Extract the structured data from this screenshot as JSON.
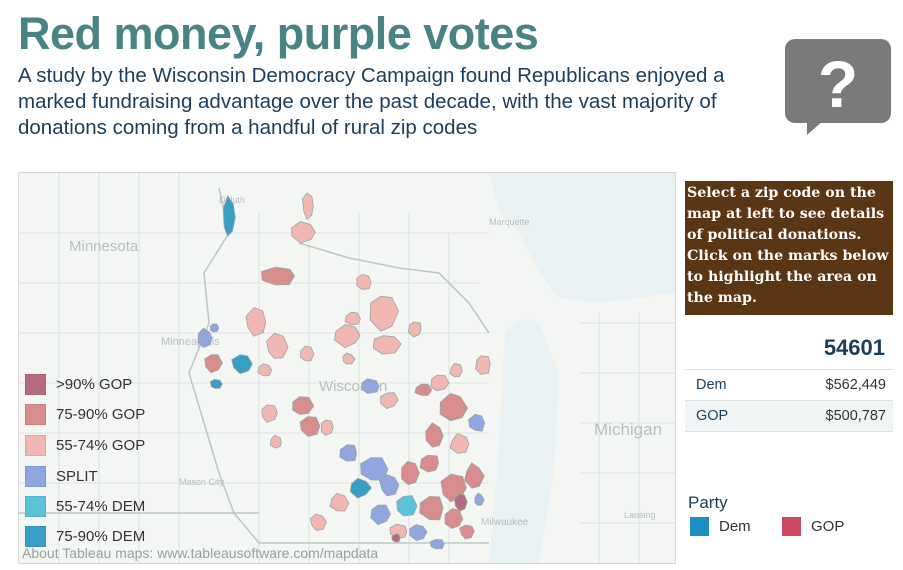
{
  "header": {
    "title": "Red money, purple votes",
    "subtitle": "A study by the Wisconsin Democracy Campaign found Republicans enjoyed a marked fundraising advantage over the past decade, with the vast majority of donations coming from a handful of rural zip codes"
  },
  "map": {
    "place_labels": [
      "Duluth",
      "Marquette",
      "Minnesota",
      "Minneapolis",
      "Wisconsin",
      "Michigan",
      "Mason City",
      "Milwaukee",
      "Lansing"
    ],
    "attribution": "About Tableau maps: www.tableausoftware.com/mapdata",
    "legend": [
      {
        "label": ">90% GOP",
        "color": "#b56b80"
      },
      {
        "label": "75-90% GOP",
        "color": "#d98c8c"
      },
      {
        "label": "55-74% GOP",
        "color": "#f3b7b2"
      },
      {
        "label": "SPLIT",
        "color": "#8fa6e0"
      },
      {
        "label": "55-74% DEM",
        "color": "#5bc3d9"
      },
      {
        "label": "75-90% DEM",
        "color": "#3a9fc6"
      }
    ]
  },
  "info_panel": {
    "text": "Select a zip code on the map at left to see details of political donations. Click on the marks below to highlight the area on the map."
  },
  "selection": {
    "zip": "54601",
    "rows": [
      {
        "party": "Dem",
        "amount": "$562,449"
      },
      {
        "party": "GOP",
        "amount": "$500,787"
      }
    ]
  },
  "party_legend": {
    "title": "Party",
    "items": [
      {
        "label": "Dem",
        "color": "#1a8fc4"
      },
      {
        "label": "GOP",
        "color": "#cc4a60"
      }
    ]
  },
  "icons": {
    "help": "help-question-icon"
  }
}
